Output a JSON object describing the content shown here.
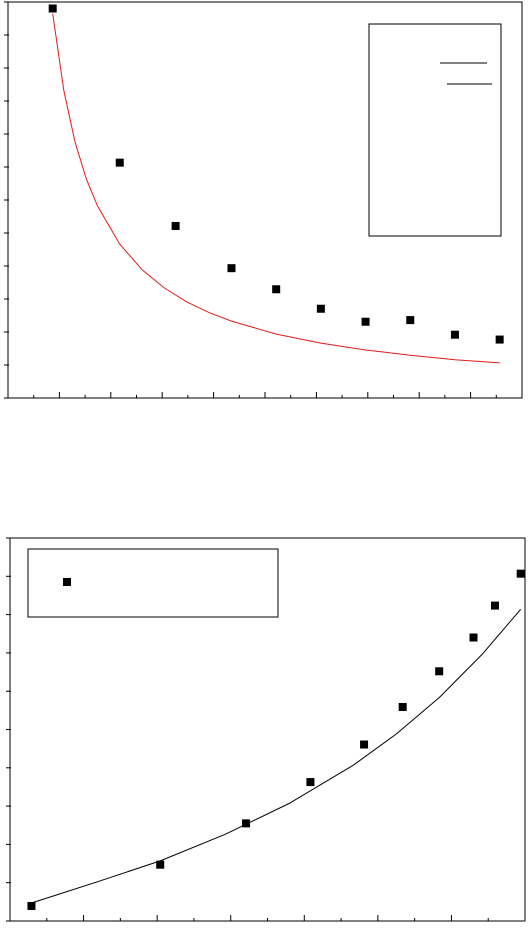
{
  "chart_data": [
    {
      "type": "scatter",
      "title": "",
      "xlabel": "",
      "ylabel": "",
      "xlim": [
        0,
        11.5
      ],
      "ylim": [
        0,
        12.2
      ],
      "grid": false,
      "legend_position": "top-right",
      "legend_entries": 2,
      "series": [
        {
          "kind": "points",
          "marker": "square",
          "color": "#000000",
          "x": [
            1,
            2.5,
            3.75,
            5,
            6,
            7,
            8,
            9,
            10,
            11
          ],
          "y": [
            12,
            7.25,
            5.3,
            4.0,
            3.35,
            2.75,
            2.35,
            2.4,
            1.95,
            1.8
          ]
        },
        {
          "kind": "fit",
          "color": "#e41a1c",
          "x": [
            1,
            1.25,
            1.5,
            1.75,
            2,
            2.5,
            3,
            3.5,
            4,
            4.5,
            5,
            6,
            7,
            8,
            9,
            10,
            11
          ],
          "y": [
            11.84,
            9.46,
            7.89,
            6.76,
            5.92,
            4.74,
            3.95,
            3.39,
            2.96,
            2.63,
            2.37,
            1.97,
            1.69,
            1.48,
            1.32,
            1.18,
            1.08
          ]
        }
      ]
    },
    {
      "type": "scatter",
      "title": "",
      "xlabel": "",
      "ylabel": "",
      "xlim": [
        0,
        12
      ],
      "ylim": [
        0,
        10.2
      ],
      "grid": false,
      "legend_position": "top-left",
      "legend_entries": 1,
      "series": [
        {
          "kind": "points",
          "marker": "square",
          "color": "#000000",
          "x": [
            0.5,
            3.5,
            5.5,
            7,
            8.25,
            9.15,
            10,
            10.8,
            11.3,
            11.9
          ],
          "y": [
            0.4,
            1.5,
            2.6,
            3.7,
            4.7,
            5.7,
            6.65,
            7.55,
            8.4,
            9.25
          ]
        },
        {
          "kind": "fit",
          "color": "#000000",
          "x": [
            0.5,
            2,
            3.5,
            5,
            6.5,
            8,
            9,
            10,
            11,
            11.9
          ],
          "y": [
            0.48,
            1.03,
            1.6,
            2.3,
            3.13,
            4.15,
            4.98,
            5.95,
            7.1,
            8.3
          ]
        }
      ]
    }
  ]
}
